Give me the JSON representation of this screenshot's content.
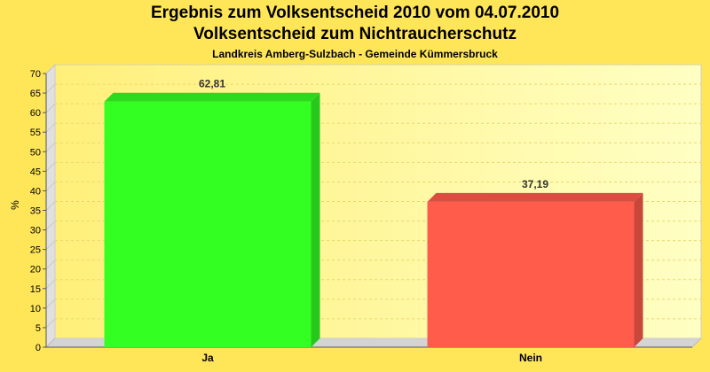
{
  "chart_data": {
    "type": "bar",
    "title": "Ergebnis zum Volksentscheid 2010 vom 04.07.2010",
    "subtitle": "Volksentscheid zum Nichtraucherschutz",
    "subsubtitle": "Landkreis Amberg-Sulzbach - Gemeinde Kümmersbruck",
    "ylabel": "%",
    "xlabel": "",
    "ylim": [
      0,
      70
    ],
    "yticks": [
      0,
      5,
      10,
      15,
      20,
      25,
      30,
      35,
      40,
      45,
      50,
      55,
      60,
      65,
      70
    ],
    "categories": [
      "Ja",
      "Nein"
    ],
    "values": [
      62.81,
      37.19
    ],
    "value_labels": [
      "62,81",
      "37,19"
    ],
    "colors": [
      "#33ff22",
      "#ff5c4c"
    ],
    "grid": true,
    "legend": "none"
  }
}
